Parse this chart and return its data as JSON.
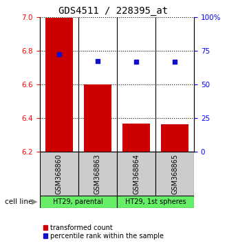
{
  "title": "GDS4511 / 228395_at",
  "samples": [
    "GSM368860",
    "GSM368863",
    "GSM368864",
    "GSM368865"
  ],
  "bar_values": [
    6.995,
    6.6,
    6.37,
    6.365
  ],
  "bar_baseline": 6.2,
  "blue_values": [
    0.724,
    0.672,
    0.668,
    0.668
  ],
  "ylim_left": [
    6.2,
    7.0
  ],
  "ylim_right": [
    0,
    1.0
  ],
  "yticks_left": [
    6.2,
    6.4,
    6.6,
    6.8,
    7.0
  ],
  "yticks_right": [
    0,
    0.25,
    0.5,
    0.75,
    1.0
  ],
  "ytick_labels_right": [
    "0",
    "25",
    "50",
    "75",
    "100%"
  ],
  "bar_color": "#cc0000",
  "blue_color": "#1010cc",
  "cell_lines": [
    "HT29, parental",
    "HT29, 1st spheres"
  ],
  "cell_line_groups": [
    [
      0,
      1
    ],
    [
      2,
      3
    ]
  ],
  "cell_line_color": "#66ee66",
  "sample_box_color": "#cccccc",
  "bar_width": 0.72,
  "legend_red_label": "transformed count",
  "legend_blue_label": "percentile rank within the sample",
  "cell_line_label": "cell line",
  "title_fontsize": 10,
  "tick_fontsize": 7.5,
  "legend_fontsize": 7,
  "sample_fontsize": 7
}
